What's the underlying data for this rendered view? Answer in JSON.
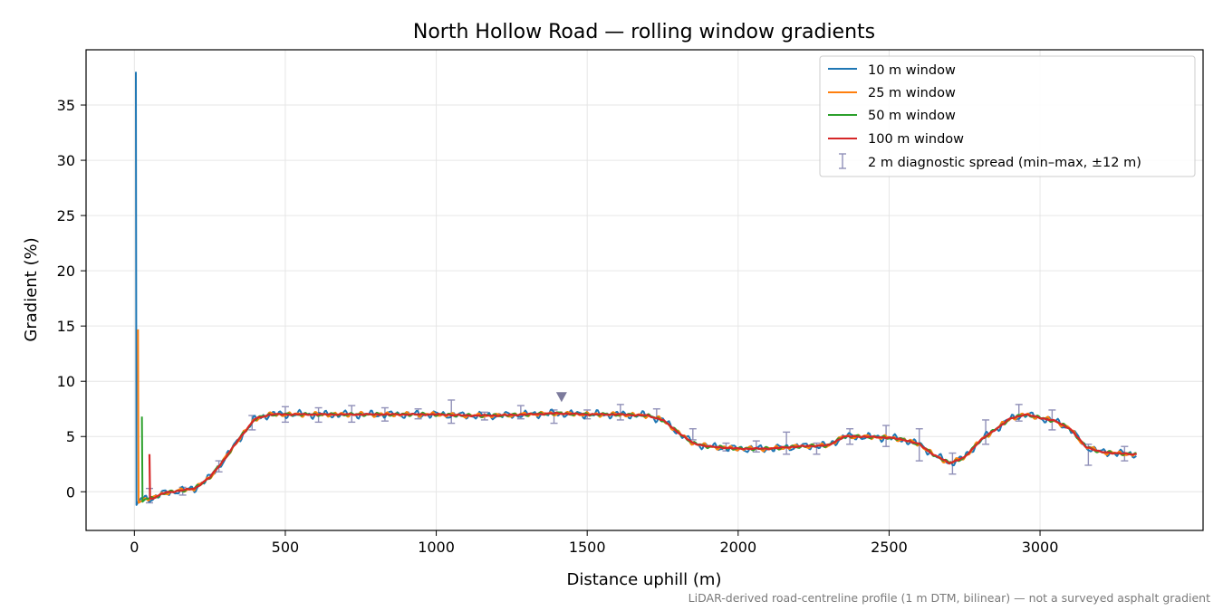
{
  "chart_data": {
    "type": "line",
    "title": "North Hollow Road — rolling window gradients",
    "xlabel": "Distance uphill (m)",
    "ylabel": "Gradient (%)",
    "xlim": [
      -160,
      3540
    ],
    "ylim": [
      -3.5,
      40
    ],
    "xticks": [
      0,
      500,
      1000,
      1500,
      2000,
      2500,
      3000
    ],
    "yticks": [
      0,
      5,
      10,
      15,
      20,
      25,
      30,
      35
    ],
    "grid": true,
    "legend_position": "top-right",
    "footnote": "LiDAR-derived road-centreline profile (1 m DTM, bilinear) — not a surveyed asphalt gradient",
    "base_profile": {
      "x": [
        60,
        100,
        150,
        200,
        250,
        300,
        350,
        400,
        450,
        500,
        600,
        700,
        800,
        900,
        1000,
        1100,
        1200,
        1300,
        1400,
        1500,
        1600,
        1700,
        1750,
        1800,
        1850,
        1900,
        1950,
        2000,
        2100,
        2200,
        2300,
        2350,
        2400,
        2500,
        2550,
        2600,
        2650,
        2700,
        2750,
        2800,
        2850,
        2900,
        2950,
        3000,
        3050,
        3100,
        3150,
        3200,
        3250,
        3300,
        3320
      ],
      "y": [
        -0.6,
        -0.1,
        0.1,
        0.3,
        1.3,
        3.0,
        4.9,
        6.6,
        7.0,
        7.0,
        7.0,
        7.0,
        7.0,
        7.0,
        7.0,
        6.9,
        6.9,
        7.0,
        7.1,
        7.0,
        7.0,
        6.9,
        6.5,
        5.4,
        4.4,
        4.1,
        4.0,
        3.9,
        3.9,
        4.1,
        4.2,
        5.0,
        5.0,
        4.9,
        4.7,
        4.3,
        3.3,
        2.6,
        3.1,
        4.6,
        5.6,
        6.6,
        7.0,
        6.7,
        6.4,
        5.7,
        4.1,
        3.6,
        3.5,
        3.4,
        3.4
      ]
    },
    "series": [
      {
        "name": "10 m window",
        "color": "#1f77b4",
        "start": 5,
        "spike": [
          38.0,
          -1.2
        ],
        "noise": 0.3
      },
      {
        "name": "25 m window",
        "color": "#ff7f0e",
        "start": 12,
        "spike": [
          14.7,
          -1.0
        ],
        "noise": 0.18
      },
      {
        "name": "50 m window",
        "color": "#2ca02c",
        "start": 25,
        "spike": [
          6.8,
          -0.9
        ],
        "noise": 0.12
      },
      {
        "name": "100 m window",
        "color": "#d62728",
        "start": 50,
        "spike": [
          3.4,
          -0.6
        ],
        "noise": 0.05
      }
    ],
    "errorbar_series": {
      "name": "2 m diagnostic spread (min–max, ±12 m)",
      "color": "#9090b8",
      "x": [
        50,
        160,
        280,
        390,
        500,
        610,
        720,
        830,
        940,
        1050,
        1160,
        1280,
        1390,
        1500,
        1610,
        1730,
        1850,
        1960,
        2060,
        2160,
        2260,
        2370,
        2490,
        2600,
        2710,
        2820,
        2930,
        3040,
        3160,
        3280
      ],
      "y": [
        -0.4,
        0.1,
        2.3,
        6.3,
        7.0,
        6.9,
        7.0,
        7.0,
        7.0,
        7.1,
        6.8,
        7.2,
        6.8,
        7.0,
        7.1,
        7.0,
        5.2,
        4.0,
        4.0,
        4.4,
        3.9,
        5.0,
        5.0,
        4.2,
        2.6,
        5.3,
        7.1,
        6.6,
        3.4,
        3.4
      ],
      "lower": [
        -1.0,
        -0.3,
        1.8,
        5.6,
        6.3,
        6.3,
        6.3,
        6.4,
        6.6,
        6.2,
        6.5,
        6.6,
        6.2,
        6.6,
        6.5,
        6.6,
        4.7,
        3.7,
        3.6,
        3.4,
        3.4,
        4.3,
        4.1,
        2.8,
        1.6,
        4.3,
        6.4,
        5.6,
        2.4,
        2.8
      ],
      "upper": [
        0.3,
        0.4,
        2.8,
        6.9,
        7.7,
        7.6,
        7.8,
        7.6,
        7.5,
        8.3,
        7.2,
        7.8,
        7.4,
        7.4,
        7.9,
        7.5,
        5.7,
        4.4,
        4.6,
        5.4,
        4.4,
        5.7,
        6.0,
        5.7,
        3.5,
        6.5,
        7.9,
        7.4,
        4.3,
        4.1
      ]
    },
    "marker": {
      "x": 1415,
      "y": 8.6,
      "shape": "triangle-down",
      "color": "#7c7a9c"
    }
  }
}
